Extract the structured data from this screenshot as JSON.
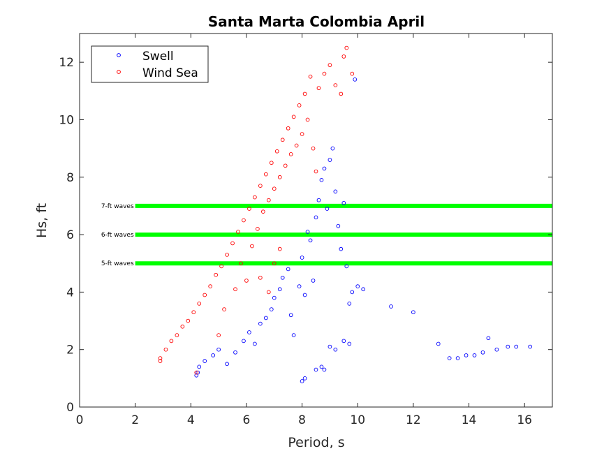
{
  "chart_data": {
    "type": "scatter",
    "title": "Santa Marta Colombia April",
    "xlabel": "Period, s",
    "ylabel": "Hs, ft",
    "xlim": [
      0,
      17
    ],
    "ylim": [
      0,
      13
    ],
    "xticks": [
      0,
      2,
      4,
      6,
      8,
      10,
      12,
      14,
      16
    ],
    "yticks": [
      0,
      2,
      4,
      6,
      8,
      10,
      12
    ],
    "grid": false,
    "legend_position": "top-left",
    "series": [
      {
        "name": "Swell",
        "color": "#0000ff",
        "marker": "open-circle",
        "points": [
          [
            4.2,
            1.1
          ],
          [
            4.25,
            1.2
          ],
          [
            4.3,
            1.4
          ],
          [
            4.5,
            1.6
          ],
          [
            4.8,
            1.8
          ],
          [
            5.0,
            2.0
          ],
          [
            5.3,
            1.5
          ],
          [
            5.6,
            1.9
          ],
          [
            5.9,
            2.3
          ],
          [
            6.1,
            2.6
          ],
          [
            6.3,
            2.2
          ],
          [
            6.5,
            2.9
          ],
          [
            6.7,
            3.1
          ],
          [
            6.9,
            3.4
          ],
          [
            7.0,
            3.8
          ],
          [
            7.2,
            4.1
          ],
          [
            7.3,
            4.5
          ],
          [
            7.5,
            4.8
          ],
          [
            7.6,
            3.2
          ],
          [
            7.7,
            2.5
          ],
          [
            7.9,
            4.2
          ],
          [
            8.0,
            5.2
          ],
          [
            8.1,
            3.9
          ],
          [
            8.2,
            6.1
          ],
          [
            8.3,
            5.8
          ],
          [
            8.4,
            4.4
          ],
          [
            8.5,
            6.6
          ],
          [
            8.6,
            7.2
          ],
          [
            8.7,
            7.9
          ],
          [
            8.8,
            8.3
          ],
          [
            8.9,
            6.9
          ],
          [
            9.0,
            8.6
          ],
          [
            9.1,
            9.0
          ],
          [
            9.2,
            7.5
          ],
          [
            9.3,
            6.3
          ],
          [
            9.4,
            5.5
          ],
          [
            9.5,
            7.1
          ],
          [
            9.6,
            4.9
          ],
          [
            9.7,
            3.6
          ],
          [
            9.8,
            4.0
          ],
          [
            9.9,
            11.4
          ],
          [
            10.0,
            4.2
          ],
          [
            10.2,
            4.1
          ],
          [
            8.0,
            0.9
          ],
          [
            8.1,
            1.0
          ],
          [
            8.5,
            1.3
          ],
          [
            8.7,
            1.4
          ],
          [
            8.8,
            1.3
          ],
          [
            9.0,
            2.1
          ],
          [
            9.2,
            2.0
          ],
          [
            9.5,
            2.3
          ],
          [
            9.7,
            2.2
          ],
          [
            11.2,
            3.5
          ],
          [
            12.0,
            3.3
          ],
          [
            12.9,
            2.2
          ],
          [
            13.3,
            1.7
          ],
          [
            13.6,
            1.7
          ],
          [
            13.9,
            1.8
          ],
          [
            14.2,
            1.8
          ],
          [
            14.5,
            1.9
          ],
          [
            14.7,
            2.4
          ],
          [
            15.0,
            2.0
          ],
          [
            15.4,
            2.1
          ],
          [
            15.7,
            2.1
          ],
          [
            16.2,
            2.1
          ]
        ]
      },
      {
        "name": "Wind Sea",
        "color": "#ff0000",
        "marker": "open-circle",
        "points": [
          [
            2.9,
            1.6
          ],
          [
            2.9,
            1.7
          ],
          [
            3.1,
            2.0
          ],
          [
            3.3,
            2.3
          ],
          [
            3.5,
            2.5
          ],
          [
            3.7,
            2.8
          ],
          [
            3.9,
            3.0
          ],
          [
            4.1,
            3.3
          ],
          [
            4.2,
            1.2
          ],
          [
            4.3,
            3.6
          ],
          [
            4.5,
            3.9
          ],
          [
            4.7,
            4.2
          ],
          [
            4.9,
            4.6
          ],
          [
            5.0,
            2.5
          ],
          [
            5.1,
            4.9
          ],
          [
            5.2,
            3.4
          ],
          [
            5.3,
            5.3
          ],
          [
            5.5,
            5.7
          ],
          [
            5.6,
            4.1
          ],
          [
            5.7,
            6.1
          ],
          [
            5.8,
            5.0
          ],
          [
            5.9,
            6.5
          ],
          [
            6.0,
            4.4
          ],
          [
            6.1,
            6.9
          ],
          [
            6.2,
            5.6
          ],
          [
            6.3,
            7.3
          ],
          [
            6.4,
            6.2
          ],
          [
            6.5,
            7.7
          ],
          [
            6.6,
            6.8
          ],
          [
            6.7,
            8.1
          ],
          [
            6.8,
            7.2
          ],
          [
            6.9,
            8.5
          ],
          [
            7.0,
            7.6
          ],
          [
            7.1,
            8.9
          ],
          [
            7.2,
            8.0
          ],
          [
            7.3,
            9.3
          ],
          [
            7.4,
            8.4
          ],
          [
            7.5,
            9.7
          ],
          [
            7.6,
            8.8
          ],
          [
            7.7,
            10.1
          ],
          [
            7.8,
            9.1
          ],
          [
            7.9,
            10.5
          ],
          [
            8.0,
            9.5
          ],
          [
            8.1,
            10.9
          ],
          [
            8.2,
            10.0
          ],
          [
            8.3,
            11.5
          ],
          [
            8.4,
            9.0
          ],
          [
            8.5,
            8.2
          ],
          [
            8.6,
            11.1
          ],
          [
            8.8,
            11.6
          ],
          [
            9.0,
            11.9
          ],
          [
            9.2,
            11.2
          ],
          [
            9.4,
            10.9
          ],
          [
            9.5,
            12.2
          ],
          [
            9.6,
            12.5
          ],
          [
            9.8,
            11.6
          ],
          [
            7.0,
            5.0
          ],
          [
            7.2,
            5.5
          ],
          [
            6.5,
            4.5
          ],
          [
            6.8,
            4.0
          ]
        ]
      }
    ],
    "reference_lines": [
      {
        "label": "5-ft waves",
        "y": 5,
        "x_start": 2,
        "x_end": 17,
        "color": "#00ff00"
      },
      {
        "label": "6-ft waves",
        "y": 6,
        "x_start": 2,
        "x_end": 17,
        "color": "#00ff00"
      },
      {
        "label": "7-ft waves",
        "y": 7,
        "x_start": 2,
        "x_end": 17,
        "color": "#00ff00"
      }
    ]
  }
}
